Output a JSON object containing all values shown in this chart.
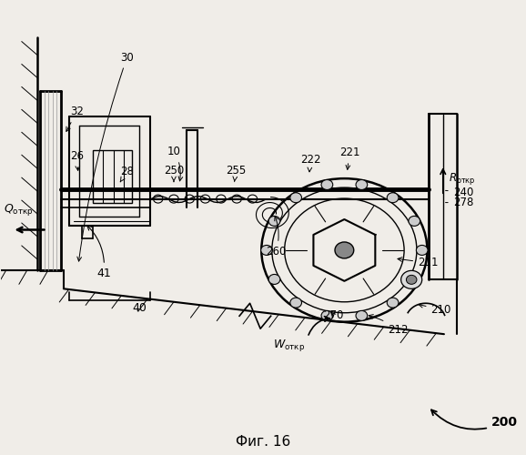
{
  "bg_color": "#f0ede8",
  "title": "Фиг. 16",
  "fig_width": 5.78,
  "fig_height": 5.0
}
